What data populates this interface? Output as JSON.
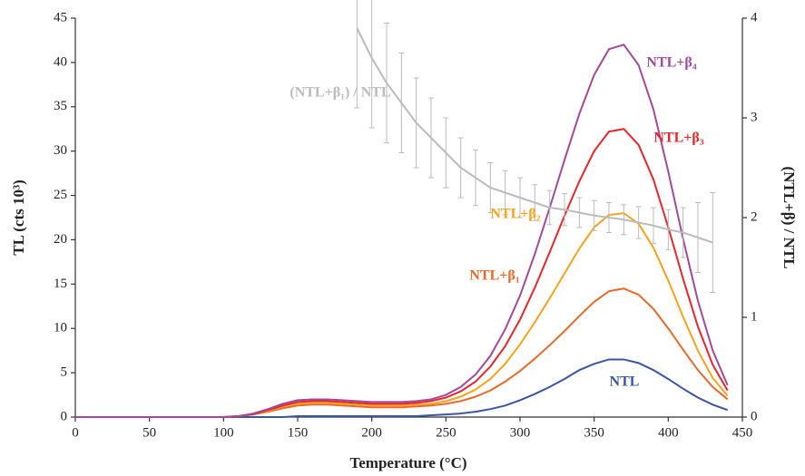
{
  "chart_data": {
    "type": "line",
    "x_label": "Temperature (°C)",
    "y_label": "TL (cts 10³)",
    "y2_label": "(NTL+β) / NTL",
    "annotations": [
      "NTL",
      "NTL+β₁",
      "NTL+β₂",
      "NTL+β₃",
      "NTL+β₄",
      "(NTL+β₁) / NTL"
    ],
    "x": [
      0,
      10,
      20,
      30,
      40,
      50,
      60,
      70,
      80,
      90,
      100,
      110,
      120,
      130,
      140,
      150,
      160,
      170,
      180,
      190,
      200,
      210,
      220,
      230,
      240,
      250,
      260,
      270,
      280,
      290,
      300,
      310,
      320,
      330,
      340,
      350,
      360,
      370,
      380,
      390,
      400,
      410,
      420,
      430,
      440
    ],
    "series": [
      {
        "color": "#3a55a4",
        "values": [
          0,
          0,
          0,
          0,
          0,
          0,
          0,
          0,
          0,
          0,
          0,
          0,
          0,
          0,
          0,
          0.1,
          0.1,
          0.1,
          0.1,
          0.1,
          0.1,
          0.1,
          0.1,
          0.1,
          0.2,
          0.3,
          0.4,
          0.6,
          0.9,
          1.3,
          1.9,
          2.6,
          3.4,
          4.3,
          5.3,
          6.0,
          6.5,
          6.5,
          6.1,
          5.3,
          4.3,
          3.2,
          2.2,
          1.4,
          0.8
        ]
      },
      {
        "color": "#e8692a",
        "values": [
          0,
          0,
          0,
          0,
          0,
          0,
          0,
          0,
          0,
          0,
          0,
          0.1,
          0.3,
          0.6,
          1.0,
          1.3,
          1.4,
          1.4,
          1.3,
          1.2,
          1.1,
          1.1,
          1.1,
          1.2,
          1.3,
          1.5,
          1.8,
          2.3,
          3.0,
          4.0,
          5.2,
          6.6,
          8.1,
          9.7,
          11.4,
          13.0,
          14.2,
          14.5,
          13.8,
          12.2,
          10.0,
          7.6,
          5.3,
          3.4,
          2.0
        ]
      },
      {
        "color": "#f5a21c",
        "values": [
          0,
          0,
          0,
          0,
          0,
          0,
          0,
          0,
          0,
          0,
          0,
          0.1,
          0.3,
          0.7,
          1.2,
          1.5,
          1.6,
          1.6,
          1.5,
          1.4,
          1.3,
          1.3,
          1.3,
          1.4,
          1.5,
          1.8,
          2.3,
          3.1,
          4.3,
          6.0,
          8.2,
          10.7,
          13.4,
          16.2,
          19.0,
          21.4,
          22.8,
          23.0,
          21.8,
          19.1,
          15.4,
          11.3,
          7.5,
          4.4,
          2.4
        ]
      },
      {
        "color": "#e8262a",
        "values": [
          0,
          0,
          0,
          0,
          0,
          0,
          0,
          0,
          0,
          0,
          0,
          0.1,
          0.3,
          0.8,
          1.3,
          1.7,
          1.8,
          1.8,
          1.7,
          1.6,
          1.5,
          1.5,
          1.5,
          1.6,
          1.8,
          2.2,
          2.9,
          4.0,
          5.7,
          8.0,
          11.0,
          14.6,
          18.6,
          22.7,
          26.6,
          30.0,
          32.2,
          32.5,
          30.7,
          26.8,
          21.4,
          15.6,
          10.2,
          5.9,
          3.0
        ]
      },
      {
        "color": "#a2499c",
        "values": [
          0,
          0,
          0,
          0,
          0,
          0,
          0,
          0,
          0,
          0,
          0,
          0.1,
          0.4,
          0.9,
          1.5,
          1.9,
          2.0,
          2.0,
          1.9,
          1.8,
          1.7,
          1.7,
          1.7,
          1.8,
          2.0,
          2.5,
          3.4,
          4.8,
          6.9,
          9.9,
          13.7,
          18.4,
          23.6,
          29.0,
          34.2,
          38.6,
          41.5,
          42.0,
          39.7,
          34.7,
          27.7,
          20.1,
          13.1,
          7.5,
          3.6
        ]
      },
      {
        "color": "#bbbbbb",
        "axis": "y2",
        "x": [
          190,
          200,
          210,
          220,
          230,
          240,
          250,
          260,
          270,
          280,
          290,
          300,
          310,
          320,
          330,
          340,
          350,
          360,
          370,
          380,
          390,
          400,
          410,
          420,
          430
        ],
        "values": [
          3.9,
          3.6,
          3.35,
          3.15,
          2.95,
          2.8,
          2.65,
          2.5,
          2.4,
          2.3,
          2.25,
          2.2,
          2.15,
          2.1,
          2.08,
          2.05,
          2.02,
          2.0,
          1.98,
          1.95,
          1.92,
          1.88,
          1.85,
          1.8,
          1.75
        ],
        "errors": [
          0.8,
          0.7,
          0.6,
          0.5,
          0.45,
          0.4,
          0.35,
          0.3,
          0.28,
          0.25,
          0.22,
          0.2,
          0.18,
          0.17,
          0.16,
          0.15,
          0.15,
          0.15,
          0.15,
          0.16,
          0.18,
          0.2,
          0.25,
          0.35,
          0.5
        ]
      }
    ],
    "xlim": [
      0,
      450
    ],
    "xticks": [
      0,
      50,
      100,
      150,
      200,
      250,
      300,
      350,
      400,
      450
    ],
    "ylim": [
      0,
      45
    ],
    "yticks": [
      0,
      5,
      10,
      15,
      20,
      25,
      30,
      35,
      40,
      45
    ],
    "y2lim": [
      0,
      4
    ],
    "y2ticks": [
      0,
      1,
      2,
      3,
      4
    ]
  }
}
